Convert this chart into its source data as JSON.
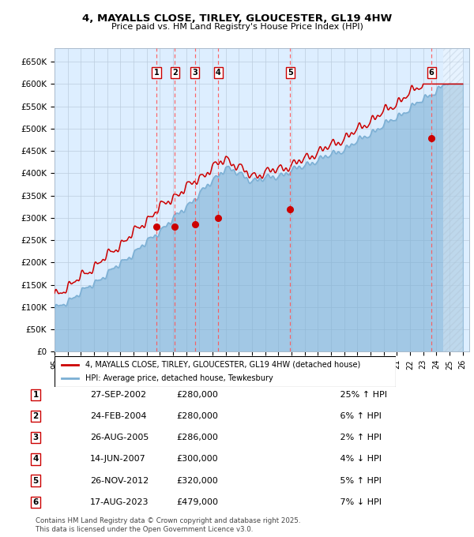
{
  "title": "4, MAYALLS CLOSE, TIRLEY, GLOUCESTER, GL19 4HW",
  "subtitle": "Price paid vs. HM Land Registry's House Price Index (HPI)",
  "legend_line1": "4, MAYALLS CLOSE, TIRLEY, GLOUCESTER, GL19 4HW (detached house)",
  "legend_line2": "HPI: Average price, detached house, Tewkesbury",
  "footer": "Contains HM Land Registry data © Crown copyright and database right 2025.\nThis data is licensed under the Open Government Licence v3.0.",
  "transactions": [
    {
      "num": 1,
      "date": "27-SEP-2002",
      "price": 280000,
      "pct": "25%",
      "dir": "↑",
      "x_year": 2002.74
    },
    {
      "num": 2,
      "date": "24-FEB-2004",
      "price": 280000,
      "pct": "6%",
      "dir": "↑",
      "x_year": 2004.14
    },
    {
      "num": 3,
      "date": "26-AUG-2005",
      "price": 286000,
      "pct": "2%",
      "dir": "↑",
      "x_year": 2005.65
    },
    {
      "num": 4,
      "date": "14-JUN-2007",
      "price": 300000,
      "pct": "4%",
      "dir": "↓",
      "x_year": 2007.45
    },
    {
      "num": 5,
      "date": "26-NOV-2012",
      "price": 320000,
      "pct": "5%",
      "dir": "↑",
      "x_year": 2012.9
    },
    {
      "num": 6,
      "date": "17-AUG-2023",
      "price": 479000,
      "pct": "7%",
      "dir": "↓",
      "x_year": 2023.63
    }
  ],
  "hpi_color": "#7bafd4",
  "price_color": "#cc0000",
  "marker_color": "#cc0000",
  "vline_color": "#ff5555",
  "bg_color": "#ddeeff",
  "ylim": [
    0,
    680000
  ],
  "yticks": [
    0,
    50000,
    100000,
    150000,
    200000,
    250000,
    300000,
    350000,
    400000,
    450000,
    500000,
    550000,
    600000,
    650000
  ],
  "xlim_start": 1995,
  "xlim_end": 2026.5
}
